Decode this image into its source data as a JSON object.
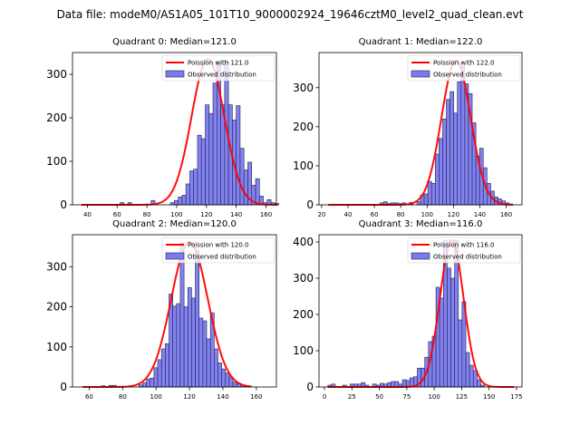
{
  "suptitle": "Data file: modeM0/AS1A05_101T10_9000002924_19646cztM0_level2_quad_clean.evt",
  "chart_data": [
    {
      "type": "bar",
      "title": "Quadrant 0: Median=121.0",
      "legend": {
        "line": "Poission with 121.0",
        "bars": "Observed distribution",
        "placement": "top-right"
      },
      "xlim": [
        30,
        167
      ],
      "ylim": [
        0,
        350
      ],
      "xticks": [
        40,
        60,
        80,
        100,
        120,
        140,
        160
      ],
      "yticks": [
        0,
        100,
        200,
        300
      ],
      "bin_start": 36,
      "bin_width": 2.6,
      "bins": [
        0,
        0,
        0,
        0,
        0,
        0,
        0,
        0,
        0,
        0,
        5,
        0,
        5,
        0,
        0,
        0,
        0,
        0,
        10,
        0,
        0,
        0,
        0,
        5,
        10,
        18,
        22,
        48,
        78,
        82,
        160,
        152,
        230,
        210,
        280,
        330,
        230,
        330,
        230,
        195,
        228,
        130,
        80,
        98,
        45,
        60,
        20,
        5,
        12,
        5,
        3
      ],
      "poisson_mean": 121.0,
      "poisson_peak": 335,
      "colors": {
        "bar": "#7b7bf0",
        "bar_edge": "#22224a",
        "line": "#ff0000"
      }
    },
    {
      "type": "bar",
      "title": "Quadrant 1: Median=122.0",
      "legend": {
        "line": "Poission with 122.0",
        "bars": "Observed distribution",
        "placement": "top-right"
      },
      "xlim": [
        18,
        172
      ],
      "ylim": [
        0,
        390
      ],
      "xticks": [
        20,
        40,
        60,
        80,
        100,
        120,
        140,
        160
      ],
      "yticks": [
        0,
        100,
        200,
        300
      ],
      "bin_start": 25,
      "bin_width": 2.8,
      "bins": [
        0,
        0,
        0,
        0,
        0,
        0,
        0,
        0,
        0,
        0,
        0,
        0,
        0,
        0,
        5,
        8,
        3,
        5,
        5,
        3,
        5,
        0,
        6,
        0,
        8,
        25,
        28,
        60,
        55,
        130,
        170,
        220,
        270,
        290,
        235,
        315,
        355,
        310,
        285,
        210,
        125,
        145,
        95,
        55,
        35,
        20,
        15,
        10,
        5,
        2
      ],
      "poisson_mean": 122.0,
      "poisson_peak": 370,
      "colors": {
        "bar": "#7b7bf0",
        "bar_edge": "#22224a",
        "line": "#ff0000"
      }
    },
    {
      "type": "bar",
      "title": "Quadrant 2: Median=120.0",
      "legend": {
        "line": "Poission with 120.0",
        "bars": "Observed distribution",
        "placement": "top-right"
      },
      "xlim": [
        50,
        172
      ],
      "ylim": [
        0,
        380
      ],
      "xticks": [
        60,
        80,
        100,
        120,
        140,
        160
      ],
      "yticks": [
        0,
        100,
        200,
        300
      ],
      "bin_start": 56,
      "bin_width": 2.25,
      "bins": [
        0,
        0,
        0,
        0,
        0,
        3,
        0,
        4,
        4,
        0,
        0,
        0,
        0,
        0,
        0,
        5,
        10,
        20,
        22,
        48,
        68,
        95,
        108,
        232,
        202,
        208,
        360,
        200,
        248,
        222,
        340,
        172,
        165,
        120,
        185,
        95,
        60,
        45,
        35,
        25,
        12,
        8,
        5,
        3,
        1
      ],
      "poisson_mean": 120.0,
      "poisson_peak": 362,
      "colors": {
        "bar": "#7b7bf0",
        "bar_edge": "#22224a",
        "line": "#ff0000"
      }
    },
    {
      "type": "bar",
      "title": "Quadrant 3: Median=116.0",
      "legend": {
        "line": "Poission with 116.0",
        "bars": "Observed distribution",
        "placement": "top-right"
      },
      "xlim": [
        -5,
        180
      ],
      "ylim": [
        0,
        420
      ],
      "xticks": [
        0,
        25,
        50,
        75,
        100,
        125,
        150,
        175
      ],
      "yticks": [
        0,
        100,
        200,
        300,
        400
      ],
      "bin_start": 3,
      "bin_width": 3.4,
      "bins": [
        5,
        8,
        0,
        0,
        5,
        0,
        8,
        8,
        8,
        12,
        5,
        0,
        8,
        5,
        10,
        8,
        12,
        15,
        15,
        8,
        20,
        18,
        25,
        28,
        52,
        52,
        82,
        125,
        140,
        275,
        245,
        405,
        328,
        300,
        405,
        185,
        235,
        95,
        60,
        45,
        20,
        5,
        0,
        0,
        0,
        0,
        0,
        0,
        0,
        0
      ],
      "poisson_mean": 116.0,
      "poisson_peak": 405,
      "colors": {
        "bar": "#7b7bf0",
        "bar_edge": "#22224a",
        "line": "#ff0000"
      }
    }
  ]
}
